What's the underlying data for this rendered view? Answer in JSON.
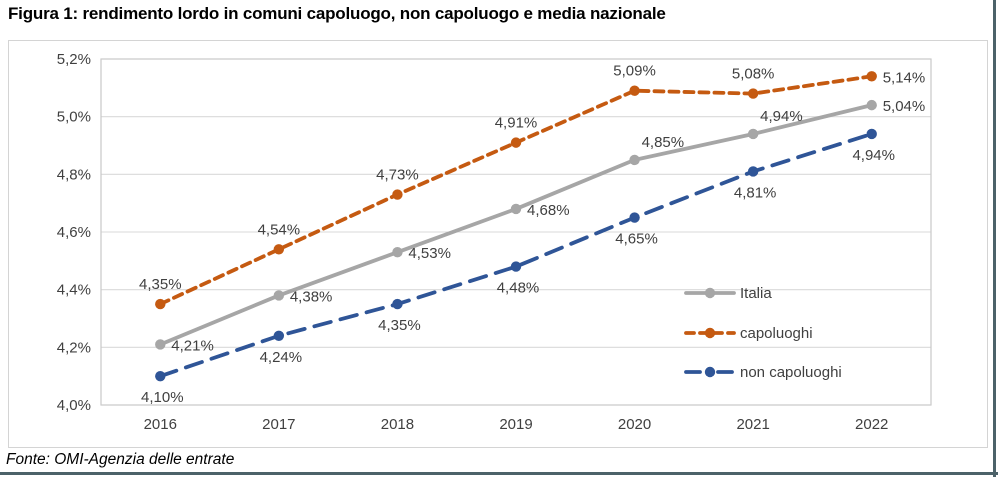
{
  "page": {
    "title": "Figura 1: rendimento lordo in comuni capoluogo, non capoluogo e media nazionale",
    "source_note": "Fonte: OMI-Agenzia delle entrate"
  },
  "colors": {
    "italia": "#A6A6A6",
    "capoluoghi": "#C55A11",
    "non_capoluoghi": "#2F5597",
    "grid": "#D9D9D9",
    "plot_border": "#C9C9C9",
    "axis_text": "#404040",
    "label_text": "#404040",
    "page_rule": "#4C6269"
  },
  "chart_data": {
    "type": "line",
    "title": "Figura 1: rendimento lordo in comuni capoluogo, non capoluogo e media nazionale",
    "xlabel": "",
    "ylabel": "",
    "categories": [
      "2016",
      "2017",
      "2018",
      "2019",
      "2020",
      "2021",
      "2022"
    ],
    "y_axis": {
      "min": 4.0,
      "max": 5.2,
      "step": 0.2,
      "tick_labels": [
        "4,0%",
        "4,2%",
        "4,4%",
        "4,6%",
        "4,8%",
        "5,0%",
        "5,2%"
      ],
      "grid": true
    },
    "legend": {
      "position": "inside-right",
      "order": [
        "Italia",
        "capoluoghi",
        "non capoluoghi"
      ]
    },
    "series": [
      {
        "name": "Italia",
        "color_key": "italia",
        "line_style": "solid",
        "dash": "",
        "legend_dash": "",
        "values": [
          4.21,
          4.38,
          4.53,
          4.68,
          4.85,
          4.94,
          5.04
        ],
        "labels": [
          "4,21%",
          "4,38%",
          "4,53%",
          "4,68%",
          "4,85%",
          "4,94%",
          "5,04%"
        ],
        "label_pos": [
          "right",
          "right",
          "right",
          "right",
          "above-right",
          "above-right",
          "right"
        ]
      },
      {
        "name": "capoluoghi",
        "color_key": "capoluoghi",
        "line_style": "dashed",
        "dash": "9 6",
        "legend_dash": "8 6",
        "values": [
          4.35,
          4.54,
          4.73,
          4.91,
          5.09,
          5.08,
          5.14
        ],
        "labels": [
          "4,35%",
          "4,54%",
          "4,73%",
          "4,91%",
          "5,09%",
          "5,08%",
          "5,14%"
        ],
        "label_pos": [
          "above",
          "above",
          "above",
          "above",
          "above",
          "above",
          "right"
        ]
      },
      {
        "name": "non capoluoghi",
        "color_key": "non_capoluoghi",
        "line_style": "long-dash-dot",
        "dash": "17 10",
        "legend_dash": "14 8 2 8",
        "values": [
          4.1,
          4.24,
          4.35,
          4.48,
          4.65,
          4.81,
          4.94
        ],
        "labels": [
          "4,10%",
          "4,24%",
          "4,35%",
          "4,48%",
          "4,65%",
          "4,81%",
          "4,94%"
        ],
        "label_pos": [
          "below",
          "below",
          "below",
          "below",
          "below",
          "below",
          "below"
        ]
      }
    ]
  }
}
